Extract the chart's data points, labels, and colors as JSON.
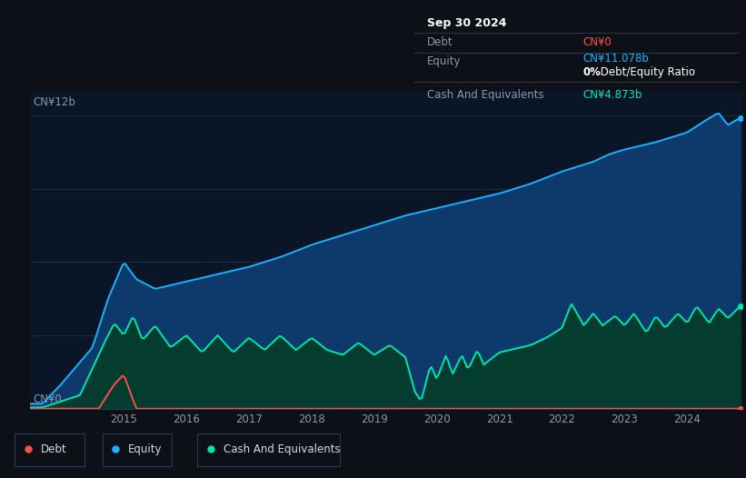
{
  "background_color": "#0d1117",
  "chart_bg_color": "#0a1628",
  "title_label": "CN¥12b",
  "zero_label": "CN¥0",
  "x_ticks": [
    "2015",
    "2016",
    "2017",
    "2018",
    "2019",
    "2020",
    "2021",
    "2022",
    "2023",
    "2024"
  ],
  "y_max": 12,
  "tooltip_date": "Sep 30 2024",
  "tooltip_debt_label": "Debt",
  "tooltip_debt": "CN¥0",
  "tooltip_equity_label": "Equity",
  "tooltip_equity": "CN¥11.078b",
  "tooltip_ratio": "0%",
  "tooltip_ratio_suffix": " Debt/Equity Ratio",
  "tooltip_cash_label": "Cash And Equivalents",
  "tooltip_cash": "CN¥4.873b",
  "equity_color": "#1ab2ff",
  "cash_color": "#00e5b0",
  "debt_color": "#ff4d4d",
  "legend_labels": [
    "Debt",
    "Equity",
    "Cash And Equivalents"
  ],
  "equity_fill_top": "#0a3a6e",
  "equity_fill_bot": "#061428",
  "cash_fill_top": "#004a40",
  "cash_fill_bot": "#021a14"
}
